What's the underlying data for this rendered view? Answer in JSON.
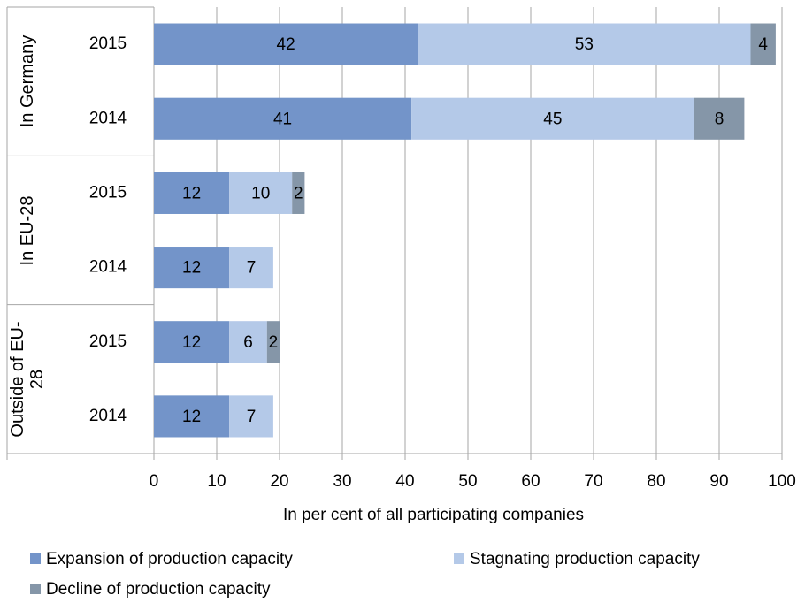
{
  "chart_data": {
    "type": "bar",
    "orientation": "horizontal",
    "stacked": true,
    "groups": [
      {
        "name": "In Germany",
        "categories": [
          "2015",
          "2014"
        ]
      },
      {
        "name": "In EU-28",
        "categories": [
          "2015",
          "2014"
        ]
      },
      {
        "name": "Outside of EU-28",
        "categories": [
          "2015",
          "2014"
        ]
      }
    ],
    "series": [
      {
        "name": "Expansion of production capacity",
        "color": "#7394c9",
        "values": [
          42,
          41,
          12,
          12,
          12,
          12
        ]
      },
      {
        "name": "Stagnating production capacity",
        "color": "#b4c9e8",
        "values": [
          53,
          45,
          10,
          7,
          6,
          7
        ]
      },
      {
        "name": "Decline of production capacity",
        "color": "#8596a8",
        "values": [
          4,
          8,
          2,
          null,
          2,
          null
        ]
      }
    ],
    "xlabel": "In per cent of all participating companies",
    "xlim": [
      0,
      100
    ],
    "xticks": [
      0,
      10,
      20,
      30,
      40,
      50,
      60,
      70,
      80,
      90,
      100
    ],
    "grid": true,
    "legend": "bottom"
  }
}
